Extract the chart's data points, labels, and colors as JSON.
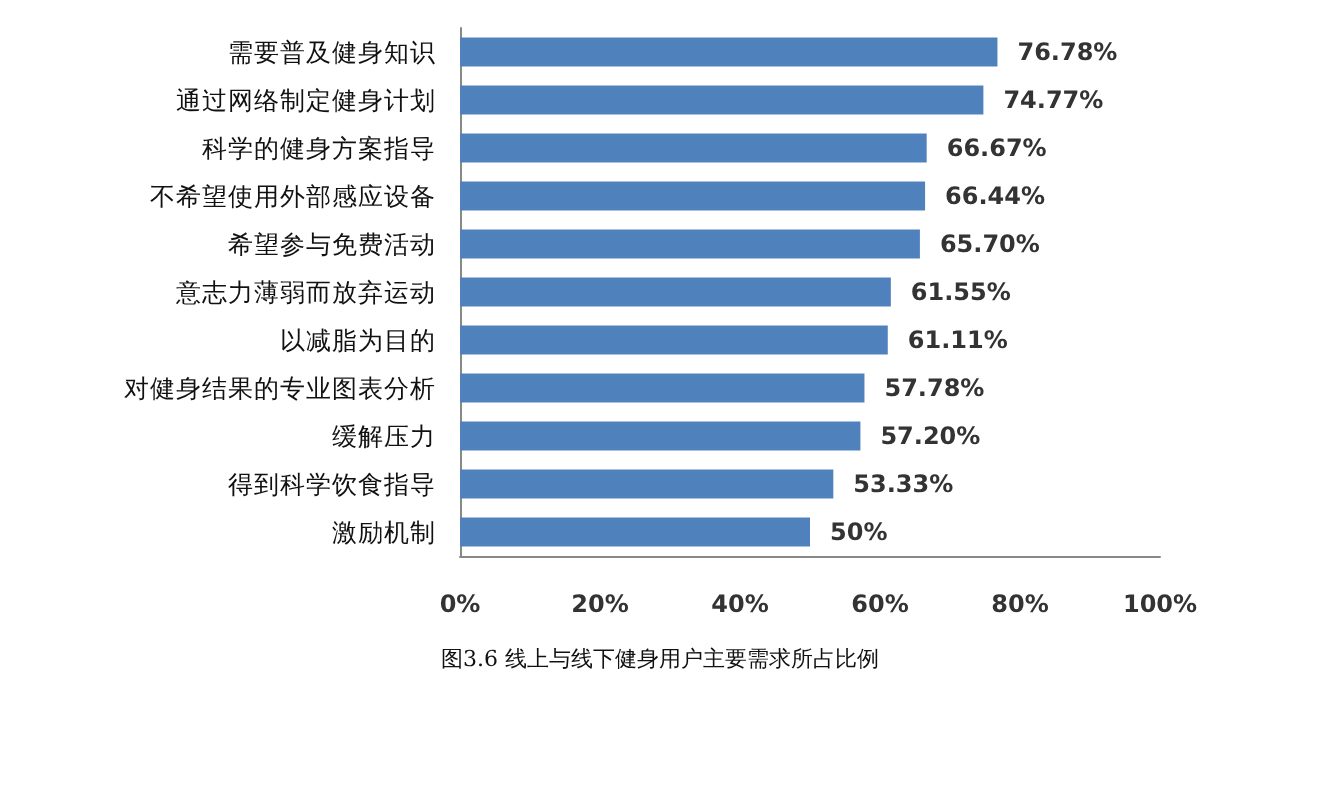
{
  "chart_data": {
    "type": "bar",
    "orientation": "horizontal",
    "categories": [
      "需要普及健身知识",
      "通过网络制定健身计划",
      "科学的健身方案指导",
      "不希望使用外部感应设备",
      "希望参与免费活动",
      "意志力薄弱而放弃运动",
      "以减脂为目的",
      "对健身结果的专业图表分析",
      "缓解压力",
      "得到科学饮食指导",
      "激励机制"
    ],
    "values": [
      76.78,
      74.77,
      66.67,
      66.44,
      65.7,
      61.55,
      61.11,
      57.78,
      57.2,
      53.33,
      50
    ],
    "value_labels": [
      "76.78%",
      "74.77%",
      "66.67%",
      "66.44%",
      "65.70%",
      "61.55%",
      "61.11%",
      "57.78%",
      "57.20%",
      "53.33%",
      "50%"
    ],
    "color": "#4f81bd",
    "xlim": [
      0,
      100
    ],
    "xticks": [
      {
        "value": 0,
        "label": "0%"
      },
      {
        "value": 20,
        "label": "20%"
      },
      {
        "value": 40,
        "label": "40%"
      },
      {
        "value": 60,
        "label": "60%"
      },
      {
        "value": 80,
        "label": "80%"
      },
      {
        "value": 100,
        "label": "100%"
      }
    ],
    "grid": false,
    "annotations": [
      "图3.6 线上与线下健身用户主要需求所占比例"
    ]
  }
}
